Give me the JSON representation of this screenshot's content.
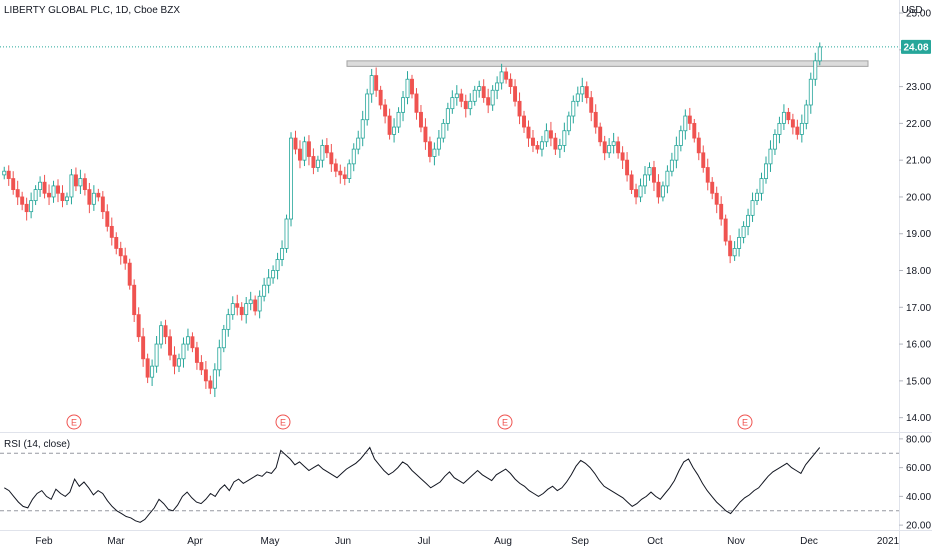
{
  "chart_data": {
    "type": "candlestick",
    "title": "LIBERTY GLOBAL PLC, 1D, Cboe BZX",
    "currency": "USD",
    "last_price_label": "24.08",
    "price_axis": {
      "ticks": [
        "25.00",
        "24.00",
        "23.00",
        "22.00",
        "21.00",
        "20.00",
        "19.00",
        "18.00",
        "17.00",
        "16.00",
        "15.00",
        "14.00"
      ],
      "range": [
        13.8,
        25.3
      ]
    },
    "time_axis": [
      "Feb",
      "Mar",
      "Apr",
      "May",
      "Jun",
      "Jul",
      "Aug",
      "Sep",
      "Oct",
      "Nov",
      "Dec",
      "2021"
    ],
    "earnings_markers": [
      "E",
      "E",
      "E",
      "E"
    ],
    "resistance_zone": [
      23.55,
      23.7
    ],
    "colors": {
      "up": "#26a69a",
      "down": "#ef5350",
      "last_price_line": "#26a69a",
      "zone_fill": "#dcdcdc",
      "zone_stroke": "#a3a3a3",
      "rsi_line": "#131722",
      "earnings": "#ef5350"
    },
    "closes": [
      20.7,
      20.5,
      20.2,
      20.0,
      19.8,
      19.6,
      19.9,
      20.2,
      20.4,
      20.1,
      20.0,
      20.3,
      20.1,
      19.9,
      20.0,
      20.6,
      20.3,
      20.5,
      20.2,
      19.8,
      20.1,
      20.0,
      19.6,
      19.2,
      18.9,
      18.6,
      18.4,
      18.2,
      17.6,
      16.8,
      16.2,
      15.6,
      15.1,
      15.4,
      16.0,
      16.5,
      16.2,
      15.7,
      15.4,
      15.6,
      16.0,
      16.2,
      15.9,
      15.5,
      15.3,
      15.0,
      14.8,
      15.3,
      15.9,
      16.4,
      16.8,
      17.1,
      17.0,
      16.8,
      17.1,
      17.2,
      16.9,
      17.3,
      17.6,
      17.8,
      18.0,
      18.3,
      18.6,
      19.4,
      21.6,
      21.3,
      21.0,
      21.5,
      21.1,
      20.8,
      21.0,
      21.4,
      21.2,
      20.9,
      20.7,
      20.6,
      20.5,
      20.9,
      21.3,
      21.6,
      22.1,
      22.8,
      23.3,
      22.9,
      22.5,
      22.2,
      21.7,
      21.9,
      22.3,
      22.7,
      23.2,
      22.8,
      22.3,
      21.9,
      21.5,
      21.1,
      21.3,
      21.6,
      22.0,
      22.4,
      22.7,
      22.8,
      22.6,
      22.4,
      22.6,
      22.9,
      23.0,
      22.7,
      22.5,
      22.9,
      23.1,
      23.4,
      23.2,
      23.0,
      22.6,
      22.2,
      21.9,
      21.6,
      21.4,
      21.3,
      21.5,
      21.8,
      21.6,
      21.3,
      21.4,
      21.8,
      22.2,
      22.6,
      22.8,
      23.0,
      22.7,
      22.3,
      21.9,
      21.5,
      21.2,
      21.4,
      21.5,
      21.2,
      21.0,
      20.6,
      20.2,
      20.0,
      20.3,
      20.6,
      20.8,
      20.4,
      20.0,
      20.3,
      20.7,
      21.0,
      21.4,
      21.8,
      22.2,
      22.0,
      21.6,
      21.2,
      20.8,
      20.4,
      20.1,
      19.8,
      19.4,
      18.8,
      18.4,
      18.6,
      18.9,
      19.2,
      19.5,
      19.9,
      20.1,
      20.5,
      20.9,
      21.3,
      21.7,
      22.0,
      22.3,
      22.1,
      21.9,
      21.7,
      22.0,
      22.5,
      23.2,
      23.7,
      24.08
    ],
    "rsi": {
      "label": "RSI (14, close)",
      "ticks": [
        "80.00",
        "60.00",
        "40.00",
        "20.00"
      ],
      "bands": [
        70,
        30
      ],
      "range": [
        18,
        82
      ],
      "values": [
        46,
        44,
        40,
        36,
        33,
        32,
        38,
        42,
        44,
        40,
        38,
        45,
        42,
        40,
        43,
        52,
        47,
        50,
        46,
        41,
        44,
        42,
        37,
        33,
        30,
        28,
        26,
        25,
        23,
        22,
        24,
        28,
        32,
        38,
        35,
        31,
        30,
        34,
        40,
        43,
        39,
        36,
        35,
        38,
        42,
        40,
        45,
        48,
        44,
        50,
        52,
        49,
        51,
        53,
        55,
        54,
        57,
        56,
        60,
        72,
        69,
        66,
        62,
        64,
        61,
        58,
        60,
        62,
        59,
        57,
        55,
        53,
        56,
        59,
        61,
        63,
        66,
        70,
        74,
        66,
        62,
        58,
        55,
        57,
        60,
        64,
        62,
        58,
        55,
        52,
        49,
        46,
        48,
        50,
        54,
        57,
        53,
        51,
        49,
        52,
        55,
        58,
        55,
        53,
        51,
        55,
        57,
        59,
        56,
        52,
        49,
        47,
        44,
        42,
        40,
        42,
        45,
        47,
        44,
        46,
        50,
        55,
        61,
        65,
        63,
        60,
        56,
        51,
        47,
        45,
        43,
        41,
        39,
        36,
        33,
        35,
        38,
        40,
        43,
        40,
        38,
        42,
        46,
        51,
        58,
        64,
        66,
        60,
        55,
        49,
        44,
        40,
        36,
        33,
        30,
        28,
        32,
        36,
        39,
        41,
        44,
        46,
        50,
        54,
        57,
        59,
        61,
        63,
        60,
        58,
        56,
        62,
        66,
        70,
        74
      ]
    }
  }
}
